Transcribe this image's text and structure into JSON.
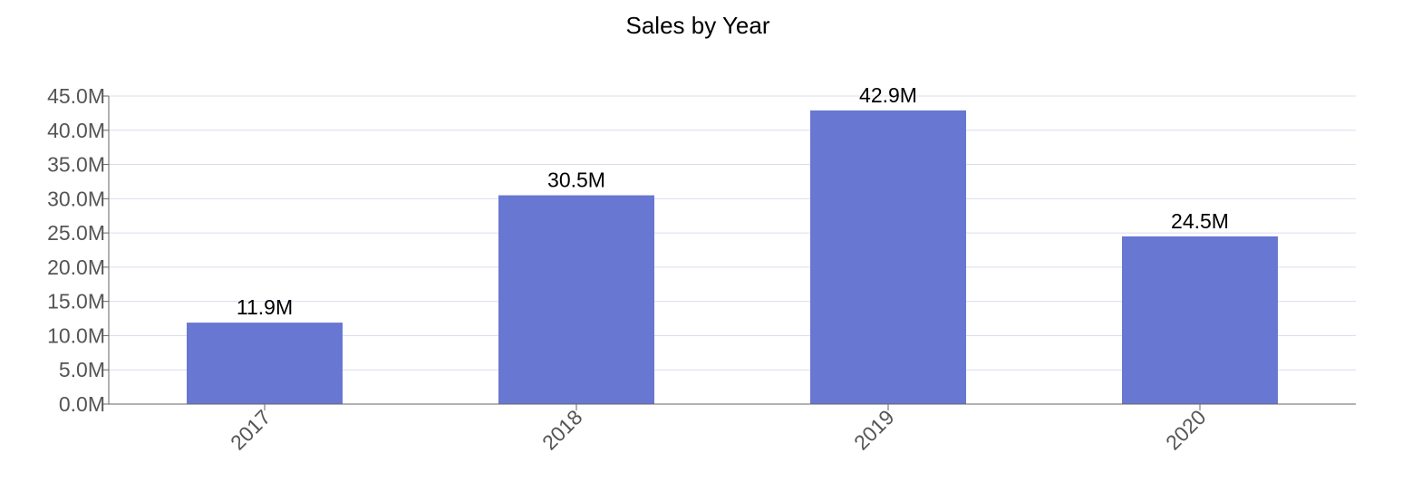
{
  "chart_data": {
    "type": "bar",
    "title": "Sales by Year",
    "xlabel": "",
    "ylabel": "",
    "categories": [
      "2017",
      "2018",
      "2019",
      "2020"
    ],
    "series": [
      {
        "values": [
          11.9,
          30.5,
          42.9,
          24.5
        ],
        "color": "#6877d1"
      }
    ],
    "data_labels": [
      "11.9M",
      "30.5M",
      "42.9M",
      "24.5M"
    ],
    "y_ticks": [
      0,
      5,
      10,
      15,
      20,
      25,
      30,
      35,
      40,
      45
    ],
    "y_tick_labels": [
      "0.0M",
      "5.0M",
      "10.0M",
      "15.0M",
      "20.0M",
      "25.0M",
      "30.0M",
      "35.0M",
      "40.0M",
      "45.0M"
    ],
    "ylim": [
      0,
      45
    ],
    "x_tick_rotation_deg": -45,
    "grid": true,
    "legend": "none"
  },
  "colors": {
    "bar": "#6877d1",
    "grid": "#dcdcef",
    "axis": "#666666",
    "tick_text": "#555555",
    "title_text": "#000000"
  }
}
